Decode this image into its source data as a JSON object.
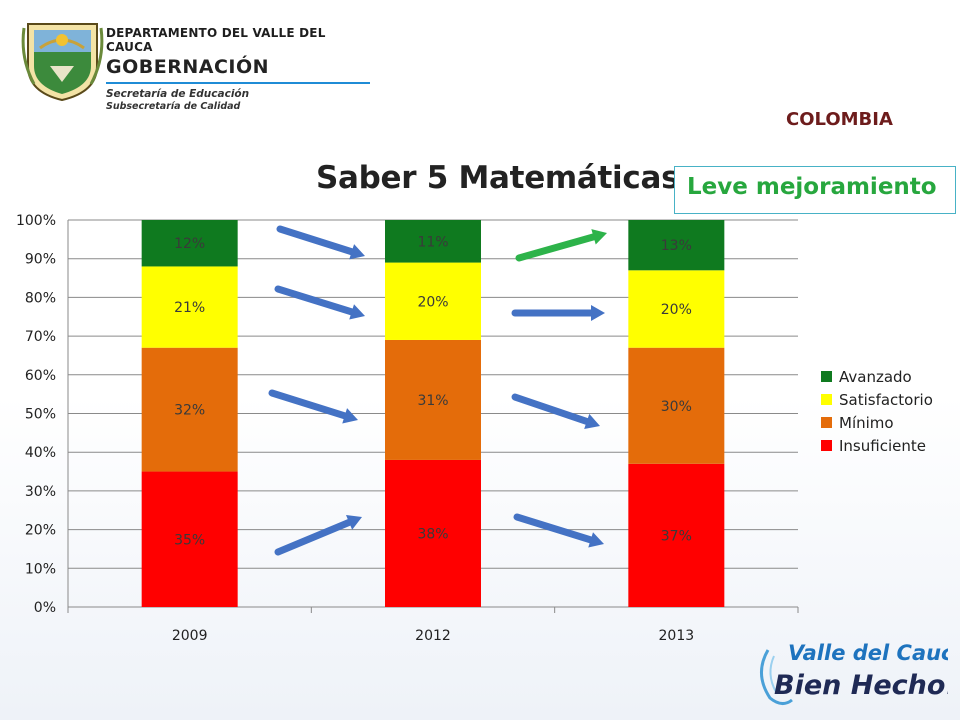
{
  "header": {
    "department": "DEPARTAMENTO DEL VALLE DEL CAUCA",
    "government": "GOBERNACIÓN",
    "secretariat": "Secretaría de Educación",
    "subsecretariat": "Subsecretaría de Calidad"
  },
  "country": "COLOMBIA",
  "note": "Leve mejoramiento",
  "brand": {
    "line1": "Valle del Cauca",
    "line2": "Bien Hecho!"
  },
  "colors": {
    "insuficiente": "#ff0000",
    "minimo": "#e46c0a",
    "satisfactorio": "#ffff00",
    "avanzado": "#0f7a1f",
    "arrow_blue": "#4472c4",
    "arrow_green": "#2db34a",
    "note_text": "#27a73e",
    "country_text": "#6d1c1c"
  },
  "chart_data": {
    "type": "bar",
    "stacked": true,
    "title": "Saber 5 Matemáticas",
    "categories": [
      "2009",
      "2012",
      "2013"
    ],
    "series": [
      {
        "name": "Insuficiente",
        "values": [
          35,
          38,
          37
        ],
        "labels": [
          "35%",
          "38%",
          "37%"
        ]
      },
      {
        "name": "Mínimo",
        "values": [
          32,
          31,
          30
        ],
        "labels": [
          "32%",
          "31%",
          "30%"
        ]
      },
      {
        "name": "Satisfactorio",
        "values": [
          21,
          20,
          20
        ],
        "labels": [
          "21%",
          "20%",
          "20%"
        ]
      },
      {
        "name": "Avanzado",
        "values": [
          12,
          11,
          13
        ],
        "labels": [
          "12%",
          "11%",
          "13%"
        ]
      }
    ],
    "y_ticks": [
      "0%",
      "10%",
      "20%",
      "30%",
      "40%",
      "50%",
      "60%",
      "70%",
      "80%",
      "90%",
      "100%"
    ],
    "ylim": [
      0,
      100
    ],
    "grid": true,
    "legend_position": "right",
    "legend_order": [
      "Avanzado",
      "Satisfactorio",
      "Mínimo",
      "Insuficiente"
    ],
    "trend_arrows": [
      {
        "category_from": "2009",
        "category_to": "2012",
        "series": "Avanzado",
        "direction": "down",
        "color": "blue"
      },
      {
        "category_from": "2009",
        "category_to": "2012",
        "series": "Satisfactorio",
        "direction": "down",
        "color": "blue"
      },
      {
        "category_from": "2009",
        "category_to": "2012",
        "series": "Mínimo",
        "direction": "down",
        "color": "blue"
      },
      {
        "category_from": "2009",
        "category_to": "2012",
        "series": "Insuficiente",
        "direction": "up",
        "color": "blue"
      },
      {
        "category_from": "2012",
        "category_to": "2013",
        "series": "Avanzado",
        "direction": "up",
        "color": "green"
      },
      {
        "category_from": "2012",
        "category_to": "2013",
        "series": "Satisfactorio",
        "direction": "flat",
        "color": "blue"
      },
      {
        "category_from": "2012",
        "category_to": "2013",
        "series": "Mínimo",
        "direction": "down",
        "color": "blue"
      },
      {
        "category_from": "2012",
        "category_to": "2013",
        "series": "Insuficiente",
        "direction": "down",
        "color": "blue"
      }
    ]
  }
}
